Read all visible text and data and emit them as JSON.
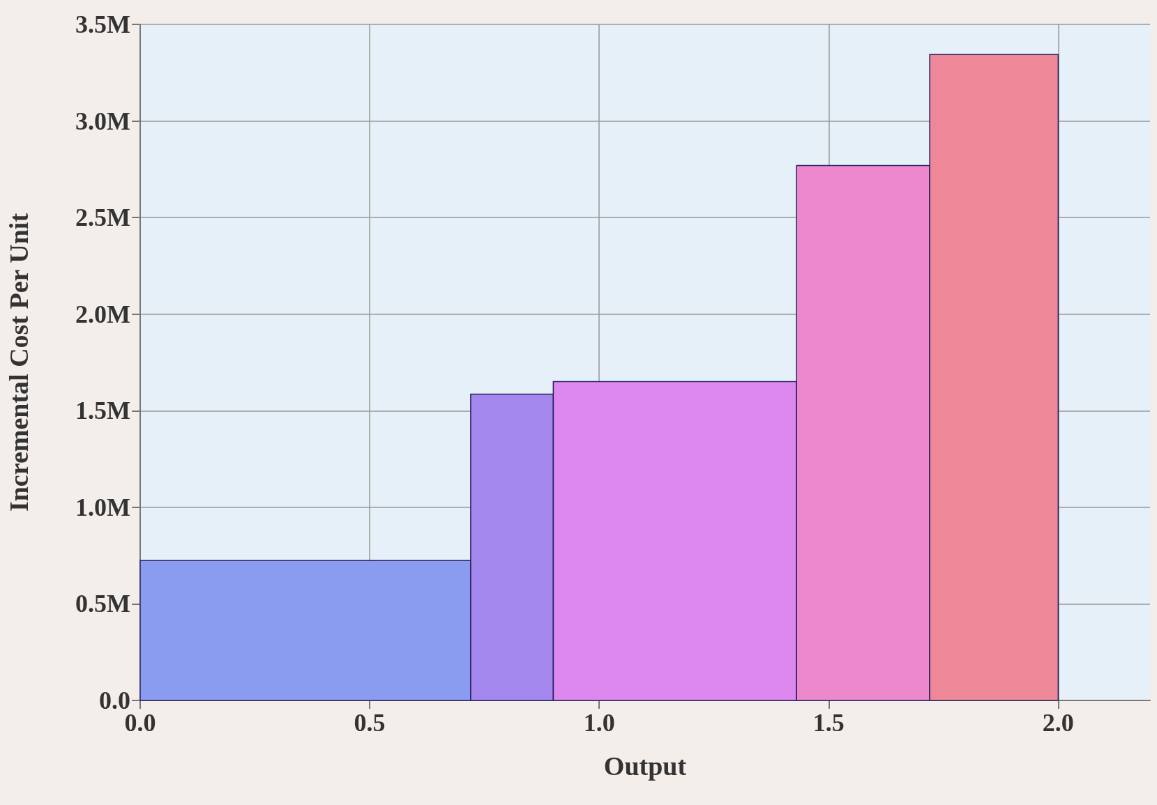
{
  "chart_data": {
    "type": "histogram",
    "xlabel": "Output",
    "ylabel": "Incremental Cost Per Unit",
    "bins": [
      0,
      0.72,
      0.9,
      1.43,
      1.72,
      2.0
    ],
    "values": [
      724000,
      1586000,
      1651000,
      2769000,
      3344000
    ],
    "colors": [
      "#8a9cf0",
      "#a488ee",
      "#dc88ee",
      "#ee88cc",
      "#ee8899"
    ],
    "xlim": [
      0,
      2.2
    ],
    "xticks": [
      {
        "value": 0,
        "label": "0.0"
      },
      {
        "value": 0.5,
        "label": "0.5"
      },
      {
        "value": 1,
        "label": "1.0"
      },
      {
        "value": 1.5,
        "label": "1.5"
      },
      {
        "value": 2,
        "label": "2.0"
      }
    ],
    "ylim": [
      0,
      3500000
    ],
    "yticks": [
      {
        "value": 0,
        "label": "0.0"
      },
      {
        "value": 500000,
        "label": "0.5M"
      },
      {
        "value": 1000000,
        "label": "1.0M"
      },
      {
        "value": 1500000,
        "label": "1.5M"
      },
      {
        "value": 2000000,
        "label": "2.0M"
      },
      {
        "value": 2500000,
        "label": "2.5M"
      },
      {
        "value": 3000000,
        "label": "3.0M"
      },
      {
        "value": 3500000,
        "label": "3.5M"
      }
    ],
    "grid": true
  }
}
